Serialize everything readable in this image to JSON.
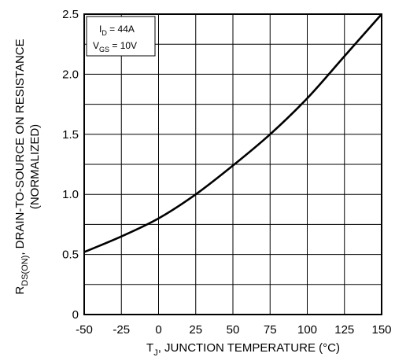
{
  "chart_data": {
    "type": "line",
    "x": [
      -50,
      -25,
      0,
      25,
      50,
      75,
      100,
      125,
      150
    ],
    "series": [
      {
        "values": [
          0.52,
          0.65,
          0.8,
          1.0,
          1.24,
          1.5,
          1.8,
          2.15,
          2.5
        ]
      }
    ],
    "xlim": [
      -50,
      150
    ],
    "ylim": [
      0,
      2.5
    ],
    "xticks": [
      "-50",
      "-25",
      "0",
      "25",
      "50",
      "75",
      "100",
      "125",
      "150"
    ],
    "yticks": [
      "0",
      "0.5",
      "1.0",
      "1.5",
      "2.0",
      "2.5"
    ],
    "grid": true,
    "xlabel": {
      "main": "T",
      "sub": "J",
      "rest": ", JUNCTION TEMPERATURE (°C)"
    },
    "ylabel": {
      "main": "R",
      "sub": "DS(ON)",
      "rest": ", DRAIN-TO-SOURCE  ON  RESISTANCE",
      "line2": "(NORMALIZED)"
    },
    "annotation": {
      "line1_main": "I",
      "line1_sub": "D",
      "line1_rest": " = 44A",
      "line2_main": "V",
      "line2_sub": "GS",
      "line2_rest": " = 10V"
    }
  },
  "colors": {
    "curve": "#000000",
    "grid": "#000000",
    "background": "#ffffff"
  }
}
